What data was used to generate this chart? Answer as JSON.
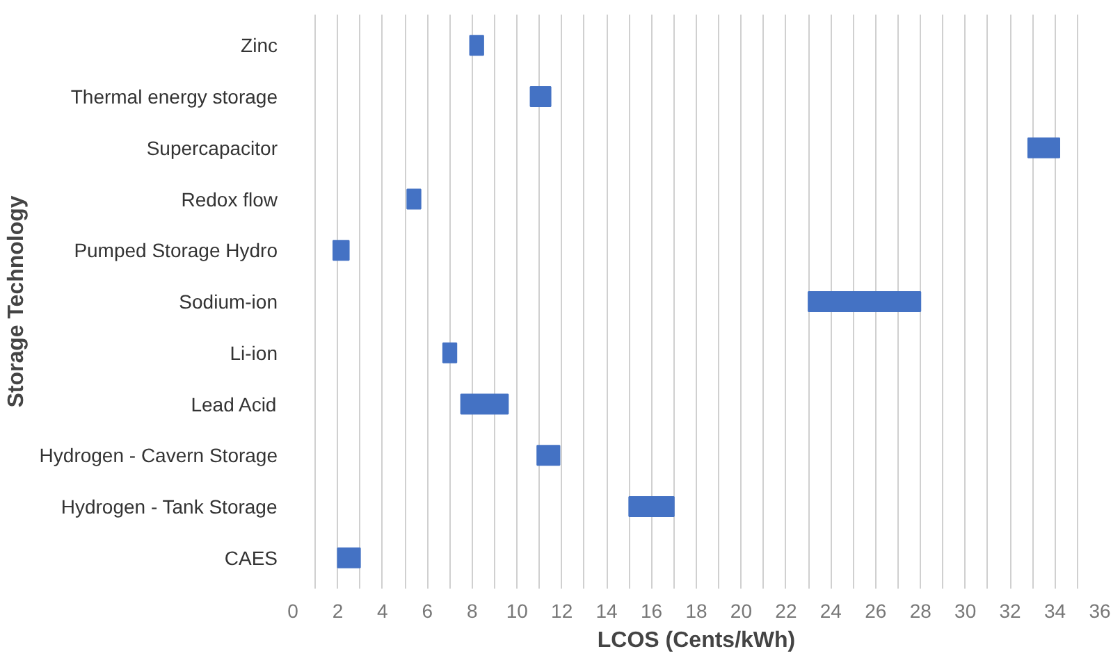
{
  "chart_data": {
    "type": "bar",
    "orientation": "horizontal",
    "xlabel": "LCOS (Cents/kWh)",
    "ylabel": "Storage Technology",
    "categories": [
      "Zinc",
      "Thermal energy storage",
      "Supercapacitor",
      "Redox flow",
      "Pumped Storage Hydro",
      "Sodium-ion",
      "Li-ion",
      "Lead Acid",
      "Hydrogen - Cavern Storage",
      "Hydrogen - Tank Storage",
      "CAES"
    ],
    "base": [
      7.9,
      10.6,
      32.8,
      5.1,
      1.8,
      23,
      6.7,
      7.5,
      10.9,
      15,
      2.0
    ],
    "values": [
      0.6,
      0.9,
      1.4,
      0.6,
      0.7,
      5,
      0.6,
      2.1,
      1.0,
      2,
      1.0
    ],
    "color": "#4472c4",
    "xlim": [
      0,
      36
    ],
    "xticks": [
      0,
      {
        "value": 1,
        "label": null
      },
      2,
      {
        "value": 3,
        "label": null
      },
      4,
      {
        "value": 5,
        "label": null
      },
      6,
      {
        "value": 7,
        "label": null
      },
      8,
      {
        "value": 9,
        "label": null
      },
      10,
      {
        "value": 11,
        "label": null
      },
      12,
      {
        "value": 13,
        "label": null
      },
      14,
      {
        "value": 15,
        "label": null
      },
      16,
      {
        "value": 17,
        "label": null
      },
      18,
      {
        "value": 19,
        "label": null
      },
      20,
      {
        "value": 21,
        "label": null
      },
      22,
      {
        "value": 23,
        "label": null
      },
      24,
      {
        "value": 25,
        "label": null
      },
      26,
      {
        "value": 27,
        "label": null
      },
      28,
      {
        "value": 29,
        "label": null
      },
      30,
      {
        "value": 31,
        "label": null
      },
      32,
      {
        "value": 33,
        "label": null
      },
      34,
      {
        "value": 35,
        "label": null
      },
      36
    ],
    "grid": "x"
  }
}
